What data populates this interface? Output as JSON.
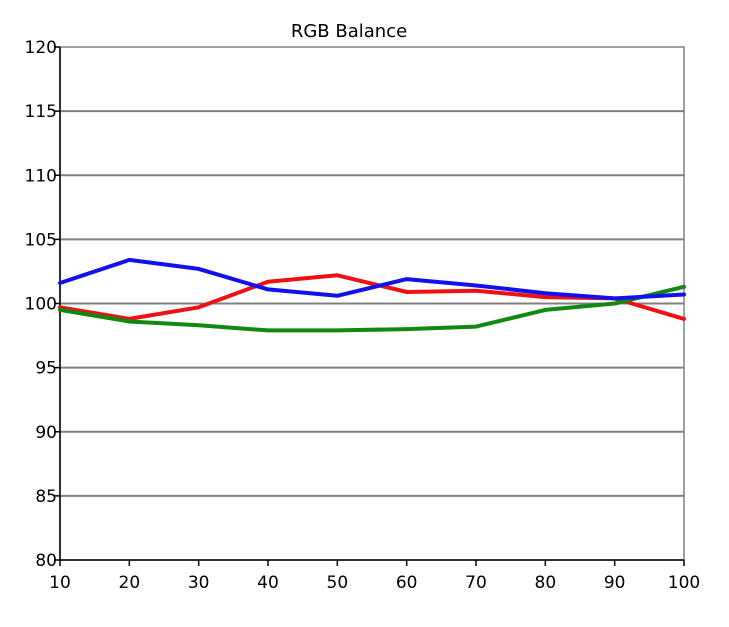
{
  "chart_data": {
    "type": "line",
    "title": "RGB Balance",
    "xlabel": "",
    "ylabel": "",
    "x": [
      10,
      20,
      30,
      40,
      50,
      60,
      70,
      80,
      90,
      100
    ],
    "xlim": [
      10,
      100
    ],
    "ylim": [
      80,
      120
    ],
    "xticks": [
      10,
      20,
      30,
      40,
      50,
      60,
      70,
      80,
      90,
      100
    ],
    "yticks": [
      80,
      85,
      90,
      95,
      100,
      105,
      110,
      115,
      120
    ],
    "grid": "horizontal",
    "legend": "none",
    "series": [
      {
        "color": "#ee1111",
        "values": [
          99.7,
          98.8,
          99.7,
          101.7,
          102.2,
          100.9,
          101.0,
          100.5,
          100.4,
          98.8
        ]
      },
      {
        "color": "#118811",
        "values": [
          99.5,
          98.6,
          98.3,
          97.9,
          97.9,
          98.0,
          98.2,
          99.5,
          100.0,
          101.3
        ]
      },
      {
        "color": "#1111ee",
        "values": [
          101.6,
          103.4,
          102.7,
          101.1,
          100.6,
          101.9,
          101.4,
          100.8,
          100.4,
          100.7
        ]
      }
    ]
  }
}
